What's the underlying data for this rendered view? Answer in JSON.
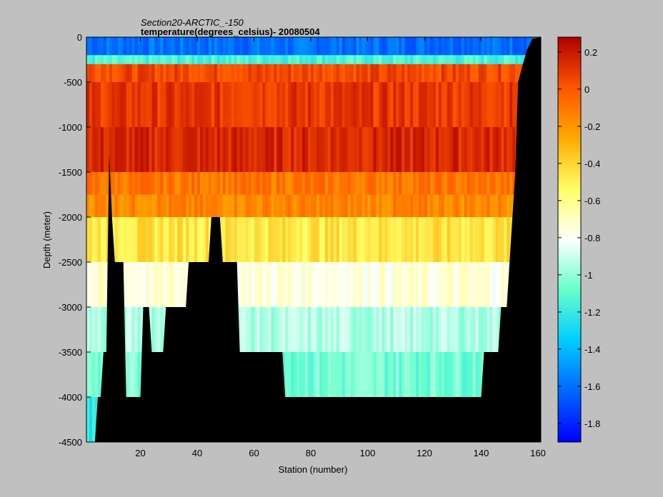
{
  "chart_data": {
    "type": "heatmap",
    "title": "Section20-ARCTIC_-150",
    "subtitle": "temperature(degrees_celsius)- 20080504",
    "xlabel": "Station (number)",
    "ylabel": "Depth (meter)",
    "xlim": [
      1,
      161
    ],
    "ylim": [
      -4500,
      0
    ],
    "x_ticks": [
      "20",
      "40",
      "60",
      "80",
      "100",
      "120",
      "140",
      "160"
    ],
    "y_ticks": [
      "0",
      "-500",
      "-1000",
      "-1500",
      "-2000",
      "-2500",
      "-3000",
      "-3500",
      "-4000",
      "-4500"
    ],
    "colorbar": {
      "range": [
        -1.9,
        0.28
      ],
      "ticks": [
        "0.2",
        "0",
        "-0.2",
        "-0.4",
        "-0.6",
        "-0.8",
        "-1",
        "-1.2",
        "-1.4",
        "-1.6",
        "-1.8"
      ],
      "colormap": "jet"
    },
    "bottom_depth_profile": {
      "stations": [
        1,
        4,
        5,
        6,
        7,
        8,
        9,
        10,
        11,
        14,
        15,
        20,
        21,
        23,
        24,
        28,
        29,
        36,
        37,
        44,
        45,
        48,
        49,
        54,
        55,
        57,
        58,
        62,
        63,
        70,
        71,
        140,
        141,
        146,
        147,
        149,
        150,
        152,
        153,
        156,
        158,
        161
      ],
      "depths": [
        -4500,
        -4500,
        -4000,
        -4000,
        -3500,
        -3500,
        -1300,
        -2000,
        -2500,
        -2500,
        -4000,
        -4000,
        -3000,
        -3000,
        -3500,
        -3500,
        -3000,
        -3000,
        -2500,
        -2500,
        -2000,
        -2000,
        -2500,
        -2500,
        -3500,
        -3500,
        -3500,
        -3500,
        -3500,
        -3500,
        -4000,
        -4000,
        -3500,
        -3500,
        -3000,
        -3000,
        -2500,
        -1500,
        -500,
        -150,
        -20,
        0
      ]
    },
    "layers": [
      {
        "depth": [
          0,
          -200
        ],
        "temp": -1.6
      },
      {
        "depth": [
          -200,
          -300
        ],
        "temp": -1.15
      },
      {
        "depth": [
          -300,
          -500
        ],
        "temp": 0.05
      },
      {
        "depth": [
          -500,
          -1000
        ],
        "temp": 0.1
      },
      {
        "depth": [
          -1000,
          -1500
        ],
        "temp": 0.15
      },
      {
        "depth": [
          -1500,
          -1750
        ],
        "temp": -0.1
      },
      {
        "depth": [
          -1750,
          -2000
        ],
        "temp": -0.15
      },
      {
        "depth": [
          -2000,
          -2500
        ],
        "temp": -0.45
      },
      {
        "depth": [
          -2500,
          -3000
        ],
        "temp": -0.75
      },
      {
        "depth": [
          -3000,
          -3500
        ],
        "temp": -0.95
      },
      {
        "depth": [
          -3500,
          -4000
        ],
        "temp": -1.05
      },
      {
        "depth": [
          -4000,
          -4500
        ],
        "temp": -1.2
      }
    ]
  }
}
